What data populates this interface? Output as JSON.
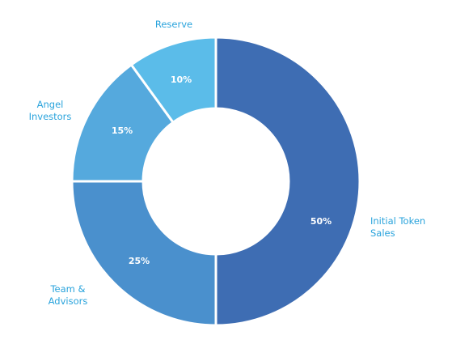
{
  "chart_data": {
    "type": "donut",
    "categories": [
      "Initial Token Sales",
      "Team & Advisors",
      "Angel Investors",
      "Reserve"
    ],
    "values": [
      50,
      25,
      15,
      10
    ],
    "value_labels": [
      "50%",
      "25%",
      "15%",
      "10%"
    ],
    "colors": [
      "#3e6db3",
      "#4a90cd",
      "#55a9dd",
      "#5bbce9"
    ]
  }
}
